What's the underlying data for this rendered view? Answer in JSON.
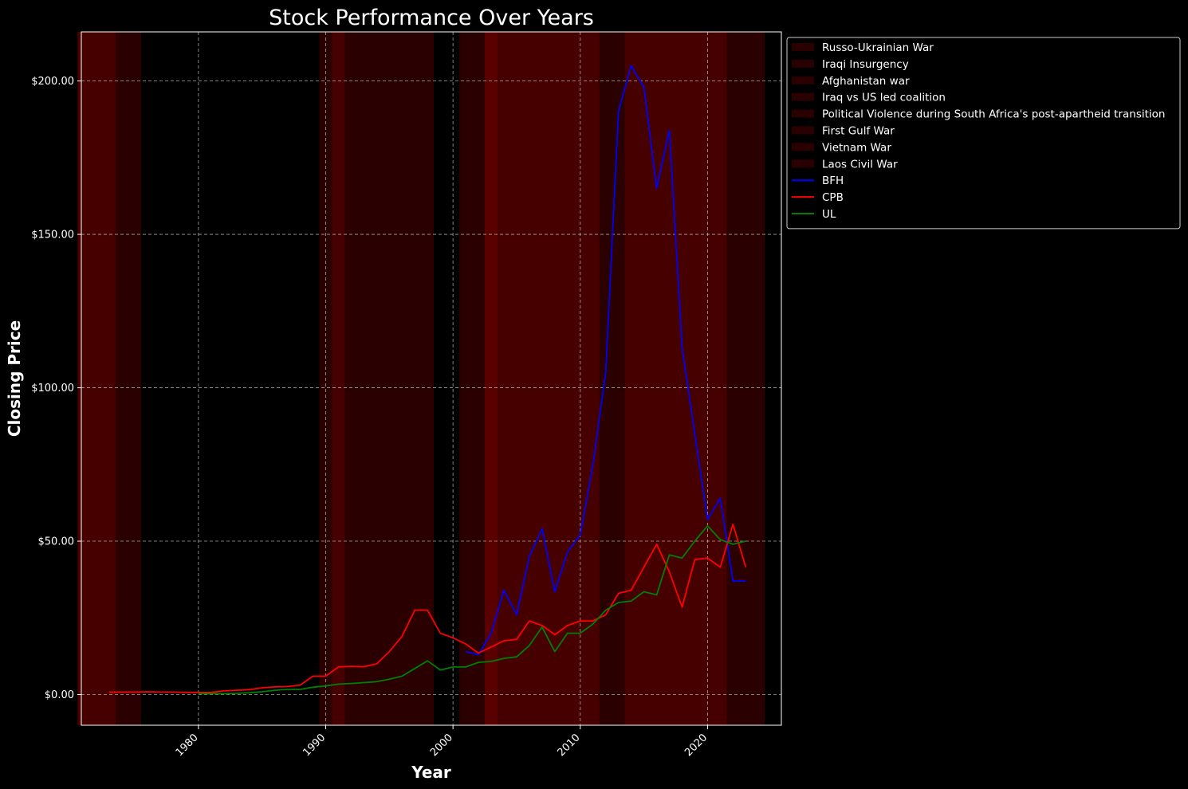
{
  "chart_data": {
    "type": "line",
    "title": "Stock Performance Over Years",
    "xlabel": "Year",
    "ylabel": "Closing Price",
    "xlim": [
      1970.8,
      2025.8
    ],
    "ylim": [
      -10,
      216
    ],
    "x_ticks": [
      1980,
      1990,
      2000,
      2010,
      2020
    ],
    "y_ticks": [
      0,
      50,
      100,
      150,
      200
    ],
    "y_tick_labels": [
      "$0.00",
      "$50.00",
      "$100.00",
      "$150.00",
      "$200.00"
    ],
    "grid": true,
    "legend_position": "outside-top-right",
    "colors": {
      "background": "#000000",
      "text": "#ffffff",
      "grid": "#cccccc",
      "shade": "#8b0000"
    },
    "shaded_periods": [
      {
        "name": "Russo-Ukrainian War",
        "start": 2014,
        "end": 2024
      },
      {
        "name": "Iraqi Insurgency",
        "start": 2003,
        "end": 2011
      },
      {
        "name": "Afghanistan war",
        "start": 2001,
        "end": 2021
      },
      {
        "name": "Iraq vs US led coalition",
        "start": 2003,
        "end": 2003
      },
      {
        "name": "Political Violence during South Africa's post-apartheid transition",
        "start": 1991,
        "end": 1998
      },
      {
        "name": "First Gulf War",
        "start": 1990,
        "end": 1991
      },
      {
        "name": "Vietnam War",
        "start": 1971,
        "end": 1975
      },
      {
        "name": "Laos Civil War",
        "start": 1971,
        "end": 1973
      }
    ],
    "series": [
      {
        "name": "BFH",
        "color": "#0000ff",
        "x": [
          2001,
          2002,
          2003,
          2004,
          2005,
          2006,
          2007,
          2008,
          2009,
          2010,
          2011,
          2012,
          2013,
          2014,
          2015,
          2016,
          2017,
          2018,
          2019,
          2020,
          2021,
          2022,
          2023
        ],
        "values": [
          14,
          13,
          20,
          34,
          26,
          45,
          54,
          33.5,
          46.5,
          52,
          75,
          105,
          190,
          205,
          198,
          165,
          184,
          113,
          85,
          57,
          64,
          37,
          37
        ]
      },
      {
        "name": "CPB",
        "color": "#ff0000",
        "x": [
          1973,
          1974,
          1975,
          1976,
          1977,
          1978,
          1979,
          1980,
          1981,
          1982,
          1983,
          1984,
          1985,
          1986,
          1987,
          1988,
          1989,
          1990,
          1991,
          1992,
          1993,
          1994,
          1995,
          1996,
          1997,
          1998,
          1999,
          2000,
          2001,
          2002,
          2003,
          2004,
          2005,
          2006,
          2007,
          2008,
          2009,
          2010,
          2011,
          2012,
          2013,
          2014,
          2015,
          2016,
          2017,
          2018,
          2019,
          2020,
          2021,
          2022,
          2023
        ],
        "values": [
          0.8,
          0.8,
          0.8,
          0.9,
          0.8,
          0.8,
          0.7,
          0.7,
          0.7,
          1.2,
          1.4,
          1.6,
          2.2,
          2.5,
          2.6,
          3.1,
          6,
          6,
          9,
          9.2,
          9.1,
          10,
          14,
          19,
          27.5,
          27.5,
          20,
          18.5,
          16.5,
          13.5,
          15.5,
          17.5,
          18,
          24,
          22.5,
          19.5,
          22.5,
          24,
          24,
          26,
          33,
          34,
          41.5,
          49,
          40,
          28.5,
          44,
          44.5,
          41.5,
          55.5,
          41.5
        ]
      },
      {
        "name": "UL",
        "color": "#008000",
        "x": [
          1980,
          1981,
          1982,
          1983,
          1984,
          1985,
          1986,
          1987,
          1988,
          1989,
          1990,
          1991,
          1992,
          1993,
          1994,
          1995,
          1996,
          1997,
          1998,
          1999,
          2000,
          2001,
          2002,
          2003,
          2004,
          2005,
          2006,
          2007,
          2008,
          2009,
          2010,
          2011,
          2012,
          2013,
          2014,
          2015,
          2016,
          2017,
          2018,
          2019,
          2020,
          2021,
          2022,
          2023
        ],
        "values": [
          0.3,
          0.3,
          0.3,
          0.4,
          0.6,
          0.9,
          1.4,
          1.7,
          1.7,
          2.4,
          2.8,
          3.4,
          3.6,
          3.9,
          4.2,
          5,
          6,
          8.5,
          11,
          8,
          9,
          9,
          10.5,
          10.8,
          11.8,
          12.3,
          16,
          22,
          14,
          20,
          20,
          23,
          27.5,
          30,
          30.5,
          33.5,
          32.5,
          45.5,
          44.5,
          50,
          55,
          50.5,
          49,
          50
        ]
      }
    ]
  }
}
